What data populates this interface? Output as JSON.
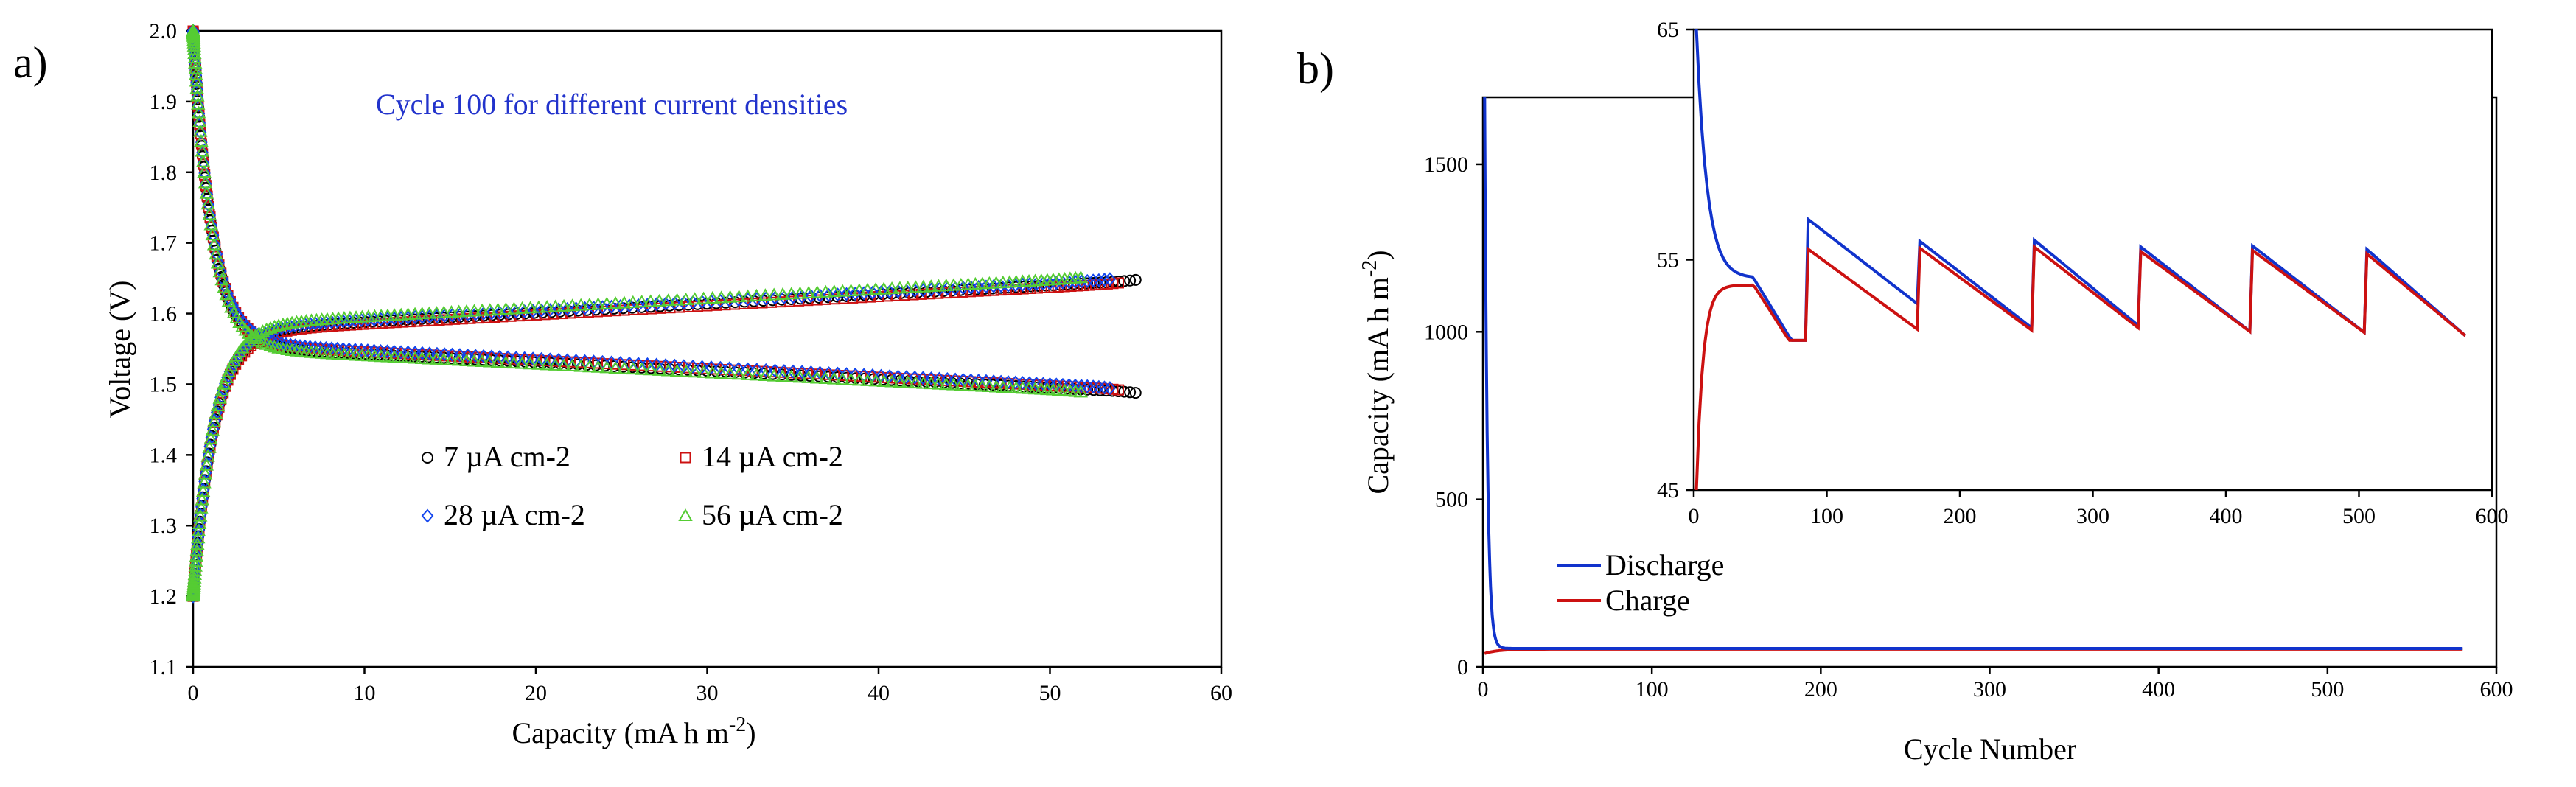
{
  "chart_data": [
    {
      "panel": "a)",
      "type": "scatter",
      "annotation": "Cycle 100 for different current densities",
      "annotation_color": "#2233cc",
      "xlabel_main": "Capacity (mA h m",
      "xlabel_sup": "-2",
      "xlabel_end": ")",
      "ylabel": "Voltage (V)",
      "xlim": [
        0,
        60
      ],
      "ylim": [
        1.1,
        2.0
      ],
      "xticks": [
        "0",
        "10",
        "20",
        "30",
        "40",
        "50",
        "60"
      ],
      "yticks": [
        "1.1",
        "1.2",
        "1.3",
        "1.4",
        "1.5",
        "1.6",
        "1.7",
        "1.8",
        "1.9",
        "2.0"
      ],
      "series": [
        {
          "name": "7 µA cm-2",
          "marker": "circle",
          "color": "#000000",
          "plateau_charge": 1.575,
          "plateau_discharge": 1.555,
          "capacity": 55.0
        },
        {
          "name": "14 µA cm-2",
          "marker": "square",
          "color": "#cc1111",
          "plateau_charge": 1.572,
          "plateau_discharge": 1.558,
          "capacity": 54.0
        },
        {
          "name": "28 µA cm-2",
          "marker": "diamond",
          "color": "#1144ee",
          "plateau_charge": 1.578,
          "plateau_discharge": 1.56,
          "capacity": 53.5
        },
        {
          "name": "56 µA cm-2",
          "marker": "triangle",
          "color": "#55cc33",
          "plateau_charge": 1.582,
          "plateau_discharge": 1.552,
          "capacity": 51.8
        }
      ]
    },
    {
      "panel": "b)",
      "type": "line",
      "xlabel": "Cycle Number",
      "ylabel_main": "Capacity (mA h m",
      "ylabel_sup": "-2",
      "ylabel_end": ")",
      "xlim": [
        0,
        600
      ],
      "ylim": [
        0,
        1700
      ],
      "xticks": [
        "0",
        "100",
        "200",
        "300",
        "400",
        "500",
        "600"
      ],
      "yticks": [
        "0",
        "500",
        "1000",
        "1500"
      ],
      "series": [
        {
          "name": "Discharge",
          "color": "#1133cc",
          "first_cycle_value": 1700,
          "stable_value": 55
        },
        {
          "name": "Charge",
          "color": "#cc1111",
          "first_cycle_value": 40,
          "stable_value": 53
        }
      ],
      "inset": {
        "xlim": [
          0,
          600
        ],
        "ylim": [
          45,
          65
        ],
        "xticks": [
          "0",
          "100",
          "200",
          "300",
          "400",
          "500",
          "600"
        ],
        "yticks": [
          "45",
          "55",
          "65"
        ],
        "discharge_start": 65,
        "charge_start": 45,
        "block_levels": [
          {
            "cycle": 45,
            "discharge": 54.2,
            "charge": 53.9
          },
          {
            "cycle": 85,
            "discharge": 56.8,
            "charge": 55.5
          },
          {
            "cycle": 170,
            "discharge": 55.8,
            "charge": 55.5
          },
          {
            "cycle": 255,
            "discharge": 55.9,
            "charge": 55.6
          },
          {
            "cycle": 335,
            "discharge": 55.6,
            "charge": 55.4
          },
          {
            "cycle": 420,
            "discharge": 55.6,
            "charge": 55.4
          },
          {
            "cycle": 505,
            "discharge": 55.5,
            "charge": 55.3
          }
        ],
        "final_value": 51.5,
        "last_cycle": 580
      }
    }
  ]
}
